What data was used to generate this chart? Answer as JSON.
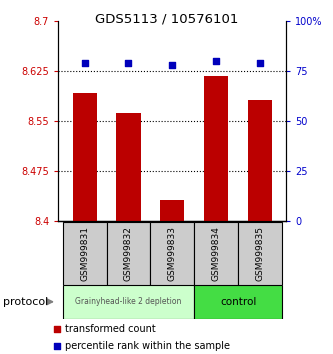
{
  "title": "GDS5113 / 10576101",
  "samples": [
    "GSM999831",
    "GSM999832",
    "GSM999833",
    "GSM999834",
    "GSM999835"
  ],
  "bar_values": [
    8.592,
    8.562,
    8.432,
    8.618,
    8.582
  ],
  "percentile_values": [
    79,
    79,
    78,
    80,
    79
  ],
  "ylim_left": [
    8.4,
    8.7
  ],
  "ylim_right": [
    0,
    100
  ],
  "yticks_left": [
    8.4,
    8.475,
    8.55,
    8.625,
    8.7
  ],
  "ytick_labels_left": [
    "8.4",
    "8.475",
    "8.55",
    "8.625",
    "8.7"
  ],
  "yticks_right": [
    0,
    25,
    50,
    75,
    100
  ],
  "ytick_labels_right": [
    "0",
    "25",
    "50",
    "75",
    "100%"
  ],
  "bar_color": "#bb0000",
  "dot_color": "#0000bb",
  "group1_label": "Grainyhead-like 2 depletion",
  "group2_label": "control",
  "group1_color": "#ccffcc",
  "group2_color": "#44dd44",
  "group1_indices": [
    0,
    1,
    2
  ],
  "group2_indices": [
    3,
    4
  ],
  "protocol_label": "protocol",
  "legend_bar_label": "transformed count",
  "legend_dot_label": "percentile rank within the sample",
  "bar_bottom": 8.4,
  "gridline_color": "#000000",
  "tick_color_left": "#cc0000",
  "tick_color_right": "#0000cc",
  "bar_width": 0.55,
  "sample_box_color": "#cccccc",
  "title_fontsize": 9.5,
  "label_fontsize": 6.5,
  "legend_fontsize": 7
}
